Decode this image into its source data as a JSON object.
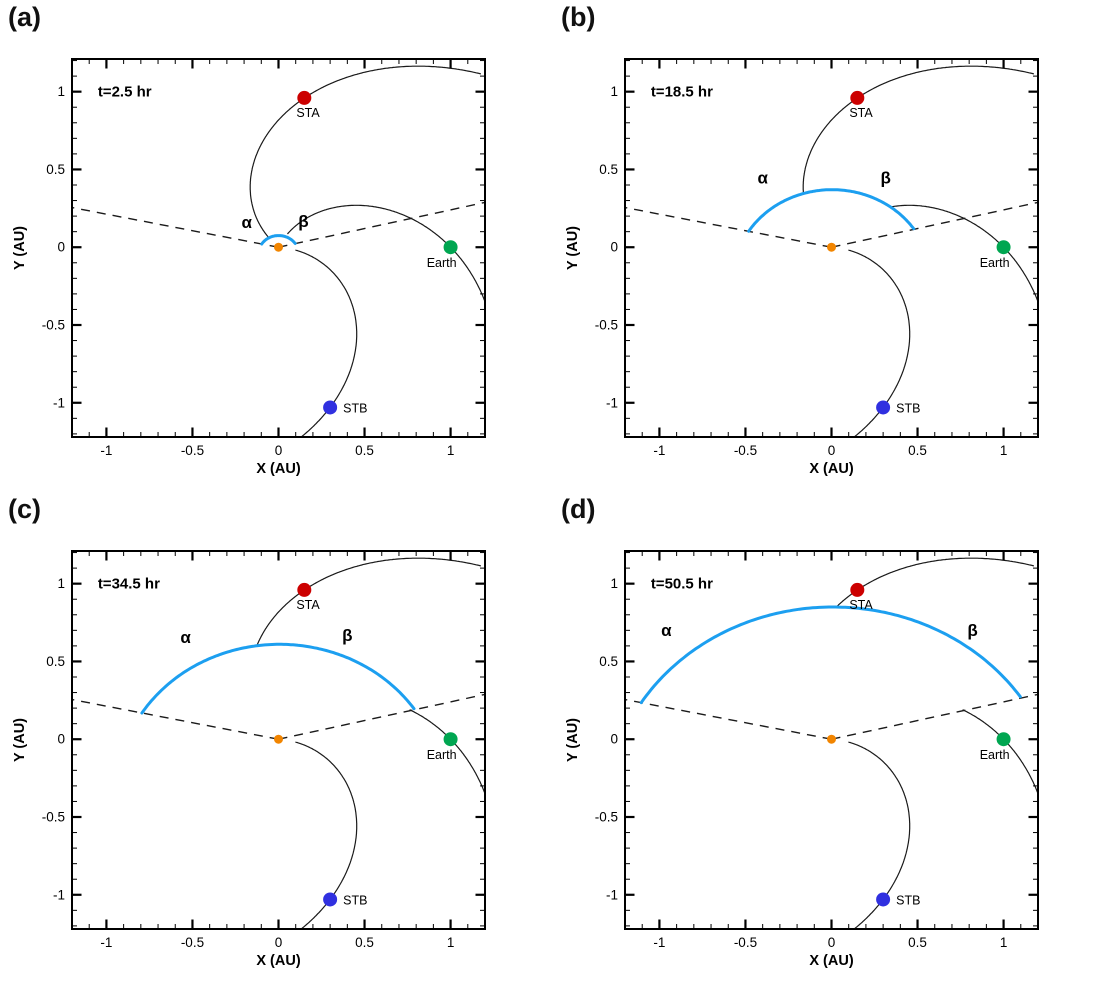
{
  "chart_data": {
    "type": "line",
    "description": "Four-panel time sequence of a CME front (blue arc) expanding from the Sun, with Parker spiral field lines connecting to STEREO-A, Earth and STEREO-B; dashed rays mark the alpha and beta flank directions",
    "axes": {
      "xlabel": "X (AU)",
      "ylabel": "Y (AU)",
      "xlim": [
        -1.2,
        1.2
      ],
      "ylim": [
        -1.22,
        1.21
      ],
      "major_ticks": [
        -1,
        -0.5,
        0,
        0.5,
        1
      ],
      "major_tick_labels": [
        "-1",
        "-0.5",
        "0",
        "0.5",
        "1"
      ],
      "minor_tick_step": 0.1,
      "grid": false
    },
    "sun": {
      "x": 0,
      "y": 0,
      "color": "#F28500"
    },
    "spacecraft": [
      {
        "name": "STA",
        "x": 0.15,
        "y": 0.96,
        "color": "#CC0000"
      },
      {
        "name": "Earth",
        "x": 1.0,
        "y": 0.0,
        "color": "#00A651"
      },
      {
        "name": "STB",
        "x": 0.3,
        "y": -1.03,
        "color": "#3030E0"
      }
    ],
    "spirals": [
      {
        "spacecraft": "STA",
        "r_sc": 0.971,
        "phi_deg": 81.1,
        "winding_deg_per_au": 58,
        "r_min": 0.09,
        "r_max": 1.62
      },
      {
        "spacecraft": "Earth",
        "r_sc": 1.0,
        "phi_deg": 0.0,
        "winding_deg_per_au": 65,
        "r_min": 0.1,
        "r_max": 1.3
      },
      {
        "spacecraft": "STB",
        "r_sc": 1.073,
        "phi_deg": -73.8,
        "winding_deg_per_au": 65,
        "r_min": 0.1,
        "r_max": 1.3
      }
    ],
    "cme": {
      "color": "#1C9FF0",
      "left_flank_angle_deg": 168,
      "right_flank_angle_deg": 14,
      "apex_angle_deg": 91,
      "flank_to_apex_ratio": 1.33,
      "flank_label_alpha": "α",
      "flank_label_beta": "β"
    },
    "dashed_rays": [
      {
        "angle_deg": 168.0,
        "length_au": 1.227
      },
      {
        "angle_deg": 13.5,
        "length_au": 1.235
      }
    ],
    "panels": [
      {
        "id": "a",
        "label": "(a)",
        "time_label": "t=2.5 hr",
        "front_apex_r_au": 0.075,
        "alpha_label_pos": [
          -0.185,
          0.125
        ],
        "beta_label_pos": [
          0.145,
          0.13
        ]
      },
      {
        "id": "b",
        "label": "(b)",
        "time_label": "t=18.5 hr",
        "front_apex_r_au": 0.37,
        "alpha_label_pos": [
          -0.4,
          0.41
        ],
        "beta_label_pos": [
          0.315,
          0.41
        ]
      },
      {
        "id": "c",
        "label": "(c)",
        "time_label": "t=34.5 hr",
        "front_apex_r_au": 0.61,
        "alpha_label_pos": [
          -0.54,
          0.62
        ],
        "beta_label_pos": [
          0.4,
          0.63
        ]
      },
      {
        "id": "d",
        "label": "(d)",
        "time_label": "t=50.5 hr",
        "front_apex_r_au": 0.85,
        "alpha_label_pos": [
          -0.96,
          0.665
        ],
        "beta_label_pos": [
          0.82,
          0.665
        ]
      }
    ],
    "style": {
      "frame_color": "#000000",
      "spiral_color": "#1a1a1a",
      "dash_color": "#1a1a1a",
      "text_color": "#000000"
    }
  }
}
